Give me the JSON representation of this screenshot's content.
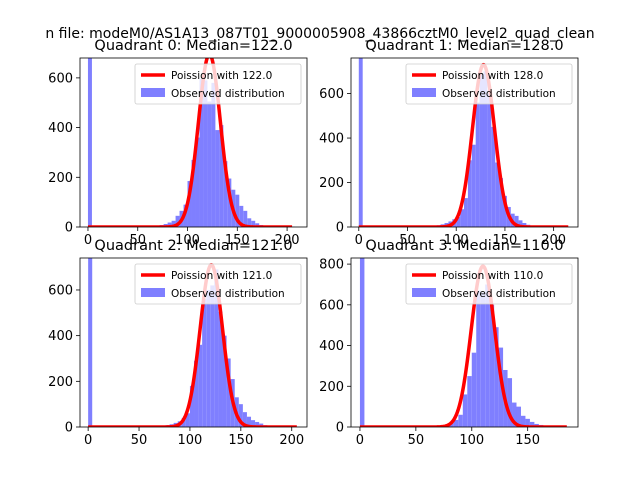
{
  "figure": {
    "suptitle": "n file: modeM0/AS1A13_087T01_9000005908_43866cztM0_level2_quad_clean"
  },
  "legend": {
    "poisson_prefix": "Poission with ",
    "observed_label": "Observed distribution",
    "placement": "upper right"
  },
  "colors": {
    "histogram": "#7f7fff",
    "poisson": "#ff0000",
    "axes": "#000000",
    "background": "#ffffff"
  },
  "chart_data": [
    {
      "type": "bar",
      "title": "Quadrant 0: Median=122.0",
      "median": 122.0,
      "xlim": [
        -8,
        220
      ],
      "ylim": [
        0,
        680
      ],
      "xticks": [
        0,
        50,
        100,
        150,
        200
      ],
      "yticks": [
        0,
        200,
        400,
        600
      ],
      "bin_width": 4,
      "bins": [
        [
          0,
          680
        ],
        [
          56,
          5
        ],
        [
          60,
          5
        ],
        [
          64,
          5
        ],
        [
          68,
          6
        ],
        [
          72,
          8
        ],
        [
          76,
          12
        ],
        [
          80,
          18
        ],
        [
          84,
          25
        ],
        [
          88,
          45
        ],
        [
          92,
          65
        ],
        [
          96,
          90
        ],
        [
          100,
          185
        ],
        [
          104,
          270
        ],
        [
          108,
          360
        ],
        [
          112,
          595
        ],
        [
          116,
          590
        ],
        [
          120,
          505
        ],
        [
          124,
          580
        ],
        [
          128,
          390
        ],
        [
          132,
          410
        ],
        [
          136,
          265
        ],
        [
          140,
          195
        ],
        [
          144,
          150
        ],
        [
          148,
          130
        ],
        [
          152,
          85
        ],
        [
          156,
          65
        ],
        [
          160,
          35
        ],
        [
          164,
          25
        ],
        [
          168,
          15
        ],
        [
          172,
          8
        ],
        [
          176,
          5
        ],
        [
          180,
          3
        ],
        [
          184,
          3
        ],
        [
          188,
          2
        ],
        [
          192,
          2
        ],
        [
          196,
          1
        ],
        [
          200,
          1
        ],
        [
          204,
          1
        ]
      ],
      "poisson": {
        "lambda": 122.0,
        "peak": 695,
        "x_range": [
          0,
          205
        ],
        "label": "Poission with 122.0"
      },
      "legend": [
        "Poission with 122.0",
        "Observed distribution"
      ]
    },
    {
      "type": "bar",
      "title": "Quadrant 1: Median=128.0",
      "median": 128.0,
      "xlim": [
        -8,
        225
      ],
      "ylim": [
        0,
        760
      ],
      "xticks": [
        0,
        50,
        100,
        150,
        200
      ],
      "yticks": [
        0,
        200,
        400,
        600
      ],
      "bin_width": 4,
      "bins": [
        [
          0,
          760
        ],
        [
          60,
          3
        ],
        [
          64,
          3
        ],
        [
          68,
          4
        ],
        [
          72,
          5
        ],
        [
          76,
          6
        ],
        [
          80,
          8
        ],
        [
          84,
          12
        ],
        [
          88,
          18
        ],
        [
          92,
          25
        ],
        [
          96,
          35
        ],
        [
          100,
          45
        ],
        [
          104,
          80
        ],
        [
          108,
          130
        ],
        [
          112,
          300
        ],
        [
          116,
          370
        ],
        [
          120,
          560
        ],
        [
          124,
          690
        ],
        [
          128,
          700
        ],
        [
          132,
          600
        ],
        [
          136,
          450
        ],
        [
          140,
          290
        ],
        [
          144,
          220
        ],
        [
          148,
          140
        ],
        [
          152,
          90
        ],
        [
          156,
          60
        ],
        [
          160,
          50
        ],
        [
          164,
          30
        ],
        [
          168,
          18
        ],
        [
          172,
          10
        ],
        [
          176,
          6
        ],
        [
          180,
          4
        ],
        [
          184,
          3
        ],
        [
          188,
          2
        ],
        [
          192,
          2
        ],
        [
          196,
          1
        ],
        [
          200,
          1
        ],
        [
          204,
          1
        ],
        [
          208,
          1
        ],
        [
          212,
          1
        ]
      ],
      "poisson": {
        "lambda": 128.0,
        "peak": 730,
        "x_range": [
          0,
          215
        ],
        "label": "Poission with 128.0"
      },
      "legend": [
        "Poission with 128.0",
        "Observed distribution"
      ]
    },
    {
      "type": "bar",
      "title": "Quadrant 2: Median=121.0",
      "median": 121.0,
      "xlim": [
        -8,
        215
      ],
      "ylim": [
        0,
        740
      ],
      "xticks": [
        0,
        50,
        100,
        150,
        200
      ],
      "yticks": [
        0,
        200,
        400,
        600
      ],
      "bin_width": 4,
      "bins": [
        [
          0,
          740
        ],
        [
          56,
          2
        ],
        [
          60,
          2
        ],
        [
          64,
          3
        ],
        [
          68,
          4
        ],
        [
          72,
          5
        ],
        [
          76,
          8
        ],
        [
          80,
          12
        ],
        [
          84,
          18
        ],
        [
          88,
          25
        ],
        [
          92,
          40
        ],
        [
          96,
          60
        ],
        [
          100,
          180
        ],
        [
          104,
          290
        ],
        [
          108,
          360
        ],
        [
          112,
          560
        ],
        [
          116,
          600
        ],
        [
          120,
          620
        ],
        [
          124,
          690
        ],
        [
          128,
          505
        ],
        [
          132,
          400
        ],
        [
          136,
          300
        ],
        [
          140,
          210
        ],
        [
          144,
          130
        ],
        [
          148,
          100
        ],
        [
          152,
          65
        ],
        [
          156,
          45
        ],
        [
          160,
          30
        ],
        [
          164,
          22
        ],
        [
          168,
          15
        ],
        [
          172,
          8
        ],
        [
          176,
          5
        ],
        [
          180,
          3
        ],
        [
          184,
          2
        ],
        [
          188,
          2
        ],
        [
          192,
          1
        ],
        [
          196,
          1
        ],
        [
          200,
          1
        ],
        [
          204,
          1
        ]
      ],
      "poisson": {
        "lambda": 121.0,
        "peak": 710,
        "x_range": [
          0,
          205
        ],
        "label": "Poission with 121.0"
      },
      "legend": [
        "Poission with 121.0",
        "Observed distribution"
      ]
    },
    {
      "type": "bar",
      "title": "Quadrant 3: Median=110.0",
      "median": 110.0,
      "xlim": [
        -8,
        195
      ],
      "ylim": [
        0,
        830
      ],
      "xticks": [
        0,
        50,
        100,
        150
      ],
      "yticks": [
        0,
        200,
        400,
        600,
        800
      ],
      "bin_width": 4,
      "bins": [
        [
          0,
          830
        ],
        [
          48,
          2
        ],
        [
          52,
          3
        ],
        [
          56,
          3
        ],
        [
          60,
          4
        ],
        [
          64,
          5
        ],
        [
          68,
          6
        ],
        [
          72,
          8
        ],
        [
          76,
          12
        ],
        [
          80,
          20
        ],
        [
          84,
          35
        ],
        [
          88,
          60
        ],
        [
          92,
          160
        ],
        [
          96,
          250
        ],
        [
          100,
          365
        ],
        [
          104,
          670
        ],
        [
          108,
          660
        ],
        [
          112,
          700
        ],
        [
          116,
          600
        ],
        [
          120,
          490
        ],
        [
          124,
          390
        ],
        [
          128,
          280
        ],
        [
          132,
          240
        ],
        [
          136,
          120
        ],
        [
          140,
          100
        ],
        [
          144,
          55
        ],
        [
          148,
          40
        ],
        [
          152,
          25
        ],
        [
          156,
          15
        ],
        [
          160,
          10
        ],
        [
          164,
          6
        ],
        [
          168,
          4
        ],
        [
          172,
          3
        ],
        [
          176,
          2
        ],
        [
          180,
          1
        ],
        [
          184,
          1
        ]
      ],
      "poisson": {
        "lambda": 110.0,
        "peak": 790,
        "x_range": [
          0,
          185
        ],
        "label": "Poission with 110.0"
      },
      "legend": [
        "Poission with 110.0",
        "Observed distribution"
      ]
    }
  ]
}
